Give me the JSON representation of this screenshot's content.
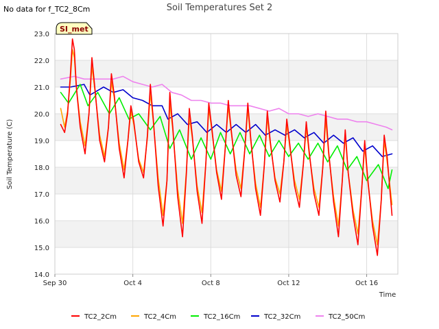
{
  "no_data_note": "No data for f_TC2_8Cm",
  "site_badge": "SI_met",
  "chart_data": {
    "type": "line",
    "title": "Soil Temperatures Set 2",
    "xlabel": "Time",
    "ylabel": "Soil Temperature (C)",
    "xlim": [
      0,
      17.6
    ],
    "ylim": [
      14.0,
      23.0
    ],
    "yticks": [
      "14.0",
      "15.0",
      "16.0",
      "17.0",
      "18.0",
      "19.0",
      "20.0",
      "21.0",
      "22.0",
      "23.0"
    ],
    "xticks": [
      {
        "value": 0,
        "label": "Sep 30"
      },
      {
        "value": 4,
        "label": "Oct 4"
      },
      {
        "value": 8,
        "label": "Oct 8"
      },
      {
        "value": 12,
        "label": "Oct 12"
      },
      {
        "value": 16,
        "label": "Oct 16"
      }
    ],
    "grid": true,
    "legend": "bottom",
    "series": [
      {
        "name": "TC2_2Cm",
        "color": "#ff0000",
        "x": [
          0.3,
          0.5,
          0.65,
          0.8,
          0.9,
          1.0,
          1.1,
          1.3,
          1.55,
          1.75,
          1.9,
          2.05,
          2.3,
          2.55,
          2.75,
          2.9,
          3.05,
          3.3,
          3.55,
          3.75,
          3.9,
          4.05,
          4.3,
          4.55,
          4.75,
          4.9,
          5.05,
          5.3,
          5.55,
          5.75,
          5.9,
          6.05,
          6.3,
          6.55,
          6.75,
          6.9,
          7.05,
          7.3,
          7.55,
          7.75,
          7.9,
          8.05,
          8.3,
          8.55,
          8.75,
          8.9,
          9.05,
          9.3,
          9.55,
          9.75,
          9.9,
          10.05,
          10.3,
          10.55,
          10.75,
          10.9,
          11.05,
          11.3,
          11.55,
          11.75,
          11.9,
          12.05,
          12.3,
          12.55,
          12.75,
          12.9,
          13.05,
          13.3,
          13.55,
          13.75,
          13.9,
          14.05,
          14.3,
          14.55,
          14.75,
          14.9,
          15.05,
          15.3,
          15.55,
          15.75,
          15.9,
          16.05,
          16.3,
          16.55,
          16.75,
          16.9,
          17.05,
          17.3
        ],
        "values": [
          19.6,
          19.3,
          20.0,
          21.5,
          22.8,
          22.4,
          21.0,
          19.5,
          18.5,
          20.0,
          22.1,
          21.0,
          19.0,
          18.2,
          19.5,
          21.5,
          20.7,
          18.7,
          17.6,
          19.0,
          20.3,
          19.7,
          18.2,
          17.6,
          19.2,
          21.1,
          19.8,
          17.3,
          15.8,
          17.5,
          20.8,
          19.5,
          16.9,
          15.4,
          17.8,
          20.2,
          19.2,
          17.1,
          15.9,
          18.2,
          20.4,
          19.5,
          17.8,
          16.8,
          18.8,
          20.5,
          19.4,
          17.7,
          16.9,
          18.7,
          20.4,
          19.1,
          17.2,
          16.2,
          18.1,
          20.1,
          19.0,
          17.5,
          16.7,
          18.2,
          19.8,
          18.9,
          17.3,
          16.5,
          18.1,
          19.7,
          18.6,
          17.0,
          16.2,
          18.0,
          20.1,
          18.6,
          16.7,
          15.4,
          17.5,
          19.4,
          17.8,
          16.2,
          15.1,
          17.2,
          19.0,
          17.6,
          15.8,
          14.7,
          16.8,
          19.2,
          18.4,
          16.2
        ]
      },
      {
        "name": "TC2_4Cm",
        "color": "#ffa500",
        "x": [
          0.3,
          0.5,
          0.65,
          0.8,
          0.9,
          1.0,
          1.1,
          1.3,
          1.55,
          1.75,
          1.9,
          2.05,
          2.3,
          2.55,
          2.75,
          2.9,
          3.05,
          3.3,
          3.55,
          3.75,
          3.9,
          4.05,
          4.3,
          4.55,
          4.75,
          4.9,
          5.05,
          5.3,
          5.55,
          5.75,
          5.9,
          6.05,
          6.3,
          6.55,
          6.75,
          6.9,
          7.05,
          7.3,
          7.55,
          7.75,
          7.9,
          8.05,
          8.3,
          8.55,
          8.75,
          8.9,
          9.05,
          9.3,
          9.55,
          9.75,
          9.9,
          10.05,
          10.3,
          10.55,
          10.75,
          10.9,
          11.05,
          11.3,
          11.55,
          11.75,
          11.9,
          12.05,
          12.3,
          12.55,
          12.75,
          12.9,
          13.05,
          13.3,
          13.55,
          13.75,
          13.9,
          14.05,
          14.3,
          14.55,
          14.75,
          14.9,
          15.05,
          15.3,
          15.55,
          15.75,
          15.9,
          16.05,
          16.3,
          16.55,
          16.75,
          16.9,
          17.05,
          17.3
        ],
        "values": [
          20.2,
          19.5,
          20.1,
          21.3,
          22.4,
          22.1,
          21.0,
          19.7,
          18.8,
          20.0,
          21.8,
          20.9,
          19.2,
          18.4,
          19.5,
          21.2,
          20.6,
          18.9,
          17.9,
          19.0,
          20.1,
          19.6,
          18.3,
          17.8,
          19.1,
          20.8,
          19.7,
          17.6,
          16.2,
          17.5,
          20.4,
          19.4,
          17.2,
          15.9,
          17.9,
          19.9,
          19.1,
          17.3,
          16.3,
          18.2,
          20.2,
          19.4,
          17.9,
          17.1,
          18.8,
          20.3,
          19.3,
          17.9,
          17.2,
          18.7,
          20.2,
          19.0,
          17.4,
          16.5,
          18.1,
          19.9,
          18.9,
          17.6,
          17.0,
          18.2,
          19.6,
          18.8,
          17.5,
          16.8,
          18.1,
          19.5,
          18.5,
          17.2,
          16.5,
          18.0,
          19.8,
          18.5,
          16.9,
          15.8,
          17.5,
          19.2,
          17.8,
          16.4,
          15.5,
          17.2,
          18.8,
          17.5,
          16.0,
          15.1,
          16.8,
          19.0,
          18.2,
          16.6
        ]
      },
      {
        "name": "TC2_16Cm",
        "color": "#00ee00",
        "x": [
          0.3,
          0.7,
          1.3,
          1.7,
          2.2,
          2.8,
          3.3,
          3.8,
          4.3,
          4.9,
          5.4,
          5.9,
          6.4,
          7.0,
          7.5,
          8.0,
          8.5,
          9.0,
          9.5,
          10.0,
          10.5,
          11.0,
          11.5,
          12.0,
          12.5,
          13.0,
          13.5,
          14.0,
          14.5,
          15.0,
          15.5,
          16.0,
          16.6,
          17.1,
          17.3
        ],
        "values": [
          20.8,
          20.4,
          21.1,
          20.3,
          20.8,
          20.0,
          20.6,
          19.8,
          20.0,
          19.4,
          19.9,
          18.7,
          19.4,
          18.3,
          19.1,
          18.3,
          19.3,
          18.5,
          19.3,
          18.5,
          19.2,
          18.4,
          19.0,
          18.4,
          18.9,
          18.3,
          18.9,
          18.2,
          18.8,
          17.9,
          18.4,
          17.5,
          18.1,
          17.2,
          17.9
        ]
      },
      {
        "name": "TC2_32Cm",
        "color": "#0000cc",
        "x": [
          0.3,
          0.8,
          1.5,
          1.8,
          2.5,
          3.0,
          3.5,
          4.0,
          4.5,
          5.0,
          5.5,
          5.8,
          6.3,
          6.8,
          7.3,
          7.8,
          8.3,
          8.8,
          9.3,
          9.8,
          10.3,
          10.8,
          11.3,
          11.8,
          12.3,
          12.8,
          13.3,
          13.8,
          14.3,
          14.8,
          15.3,
          15.8,
          16.3,
          16.8,
          17.3
        ],
        "values": [
          21.0,
          21.0,
          21.1,
          20.7,
          21.0,
          20.8,
          20.9,
          20.6,
          20.5,
          20.3,
          20.3,
          19.8,
          20.0,
          19.6,
          19.7,
          19.3,
          19.6,
          19.3,
          19.6,
          19.3,
          19.6,
          19.2,
          19.4,
          19.2,
          19.4,
          19.1,
          19.3,
          18.9,
          19.2,
          18.9,
          19.1,
          18.6,
          18.8,
          18.4,
          18.5
        ]
      },
      {
        "name": "TC2_50Cm",
        "color": "#ee82ee",
        "x": [
          0.3,
          1.0,
          1.5,
          2.0,
          2.5,
          3.0,
          3.5,
          4.0,
          4.5,
          5.0,
          5.5,
          6.0,
          6.5,
          7.0,
          7.5,
          8.0,
          8.5,
          9.0,
          9.5,
          10.0,
          10.5,
          11.0,
          11.5,
          12.0,
          12.5,
          13.0,
          13.5,
          14.0,
          14.5,
          15.0,
          15.5,
          16.0,
          16.5,
          17.0,
          17.3
        ],
        "values": [
          21.3,
          21.4,
          21.3,
          21.3,
          21.3,
          21.3,
          21.4,
          21.2,
          21.1,
          21.0,
          21.1,
          20.8,
          20.7,
          20.5,
          20.5,
          20.4,
          20.4,
          20.3,
          20.3,
          20.3,
          20.2,
          20.1,
          20.2,
          20.0,
          20.0,
          19.9,
          20.0,
          19.9,
          19.8,
          19.8,
          19.7,
          19.7,
          19.6,
          19.5,
          19.4
        ]
      }
    ]
  }
}
